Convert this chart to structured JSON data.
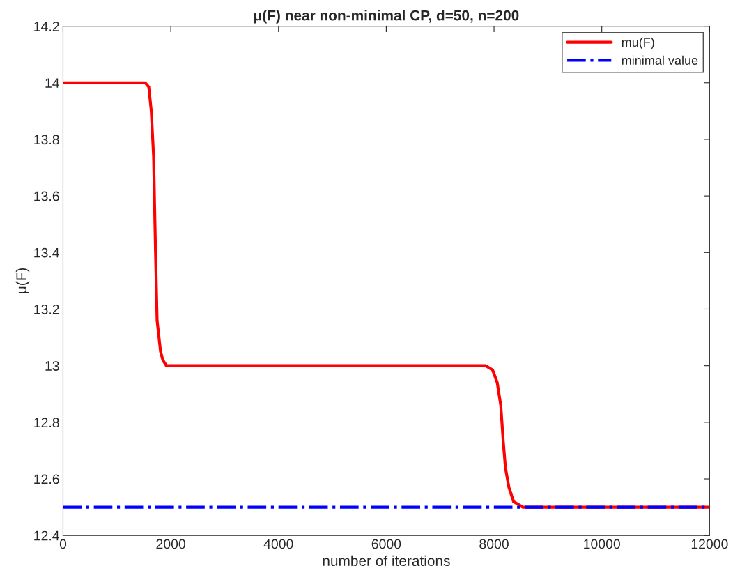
{
  "chart_data": {
    "type": "line",
    "title": "μ(F) near non-minimal CP, d=50, n=200",
    "xlabel": "number of iterations",
    "ylabel": "μ(F)",
    "series": [
      {
        "name": "mu(F)",
        "color": "#ff0000",
        "line_style": "solid",
        "x": [
          0,
          1526,
          1592,
          1638,
          1681,
          1716,
          1746,
          1810,
          1853,
          1918,
          2000,
          7845,
          7974,
          8060,
          8125,
          8168,
          8211,
          8276,
          8362,
          8535,
          12000
        ],
        "values": [
          14,
          14,
          13.985,
          13.9,
          13.74,
          13.41,
          13.16,
          13.05,
          13.02,
          13.0,
          13,
          13,
          12.985,
          12.94,
          12.86,
          12.74,
          12.64,
          12.57,
          12.52,
          12.5,
          12.5
        ]
      },
      {
        "name": "minimal value",
        "color": "#0000ff",
        "line_style": "dashdot",
        "x": [
          0,
          12000
        ],
        "values": [
          12.5,
          12.5
        ]
      }
    ],
    "xlim": [
      0,
      12000
    ],
    "xticks": [
      0,
      2000,
      4000,
      6000,
      8000,
      10000,
      12000
    ],
    "ylim": [
      12.4,
      14.2
    ],
    "yticks": [
      12.4,
      12.6,
      12.8,
      13,
      13.2,
      13.4,
      13.6,
      13.8,
      14,
      14.2
    ],
    "grid": false,
    "legend": "top right"
  }
}
